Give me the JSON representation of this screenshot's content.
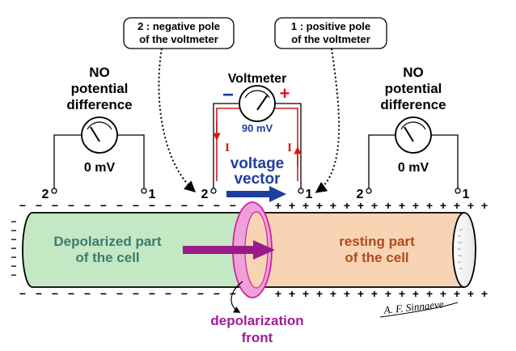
{
  "callouts": {
    "negative": [
      "2 : negative pole",
      "of the voltmeter"
    ],
    "positive": [
      "1 : positive pole",
      "of the voltmeter"
    ]
  },
  "left_meter": {
    "caption": [
      "NO",
      "potential",
      "difference"
    ],
    "reading": "0 mV",
    "pole_2": "2",
    "pole_1": "1"
  },
  "center_meter": {
    "title": "Voltmeter",
    "minus": "−",
    "plus": "+",
    "reading": "90 mV",
    "current_left": "I",
    "current_right": "I",
    "pole_2": "2",
    "pole_1": "1",
    "vector_label": [
      "voltage",
      "vector"
    ]
  },
  "right_meter": {
    "caption": [
      "NO",
      "potential",
      "difference"
    ],
    "reading": "0 mV",
    "pole_2": "2",
    "pole_1": "1"
  },
  "cell": {
    "depolarized_label": [
      "Depolarized part",
      "of the cell"
    ],
    "resting_label": [
      "resting part",
      "of the cell"
    ],
    "front_label": [
      "depolarization",
      "front"
    ]
  },
  "signature": "A. F. Sinnaeve",
  "colors": {
    "depolarized_fill": "#c4e8c4",
    "resting_fill": "#f8d4b4",
    "front_fill": "#f0a0d8",
    "front_stroke": "#d0209c",
    "arrow_purple": "#9a1a8a",
    "vector_blue": "#1f3d9e",
    "current_red": "#d81818",
    "depolarized_text": "#3c7a70",
    "resting_text": "#b04a1c",
    "front_text": "#a01c9a"
  }
}
